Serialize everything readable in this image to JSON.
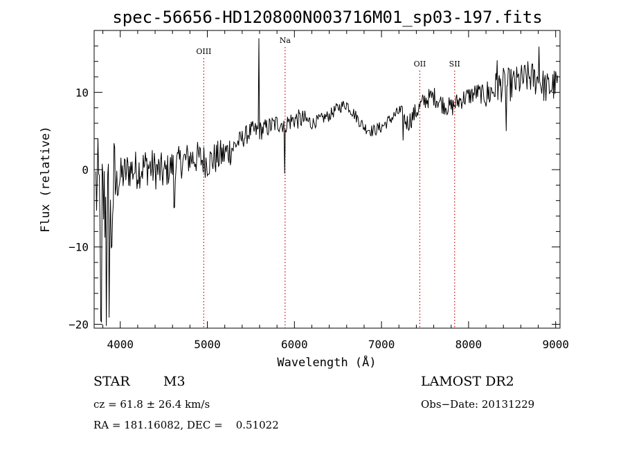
{
  "chart_data": {
    "type": "line",
    "title": "spec-56656-HD120800N003716M01_sp03-197.fits",
    "xlabel": "Wavelength (Å)",
    "ylabel": "Flux (relative)",
    "xlim": [
      3700,
      9050
    ],
    "ylim": [
      -20.5,
      18
    ],
    "x_ticks": [
      4000,
      5000,
      6000,
      7000,
      8000,
      9000
    ],
    "y_ticks": [
      -20,
      -10,
      0,
      10
    ],
    "x_tick_labels": [
      "4000",
      "5000",
      "6000",
      "7000",
      "8000",
      "9000"
    ],
    "y_tick_labels": [
      "−20",
      "−10",
      "0",
      "10"
    ],
    "line_color": "#000000",
    "marker_color": "#cc0000",
    "spectral_lines": [
      {
        "name": "OIII",
        "wavelength": 4959
      },
      {
        "name": "Na",
        "wavelength": 5893
      },
      {
        "name": "OII",
        "wavelength": 7440
      },
      {
        "name": "SII",
        "wavelength": 7840
      }
    ],
    "series": [
      {
        "x": [
          3700,
          3750,
          3800,
          3850,
          3900,
          4000,
          4100,
          4200,
          4300,
          4400,
          4500,
          4600,
          4700,
          4800,
          4900,
          5000,
          5100,
          5200,
          5300,
          5400,
          5500,
          5600,
          5700,
          5800,
          5900,
          6000,
          6100,
          6200,
          6300,
          6400,
          6500,
          6600,
          6700,
          6800,
          6900,
          7000,
          7100,
          7200,
          7300,
          7400,
          7500,
          7600,
          7700,
          7800,
          7900,
          8000,
          8100,
          8200,
          8300,
          8400,
          8500,
          8600,
          8700,
          8800,
          8900,
          9000
        ],
        "y": [
          -2,
          -3,
          -4,
          -5,
          -3,
          -1,
          0,
          0,
          0.5,
          0,
          -0.5,
          0.5,
          1,
          1.5,
          1.5,
          1,
          1.5,
          2,
          3,
          4,
          5,
          5,
          5.5,
          6,
          6,
          6.5,
          6.5,
          6,
          6.5,
          7,
          8,
          8.5,
          7,
          5.5,
          5,
          5.5,
          6.5,
          7.5,
          6,
          7.5,
          9,
          9.5,
          8.5,
          8,
          9,
          9.5,
          10,
          9.5,
          10.5,
          11,
          11,
          11.5,
          12,
          11.5,
          10.5,
          11
        ]
      }
    ]
  },
  "info": {
    "object_type": "STAR",
    "subclass": "M3",
    "survey": "LAMOST DR2",
    "redshift": "cz = 61.8 ± 26.4 km/s",
    "obs_date": "Obs−Date: 20131229",
    "coords": "RA = 181.16082, DEC =    0.51022"
  }
}
